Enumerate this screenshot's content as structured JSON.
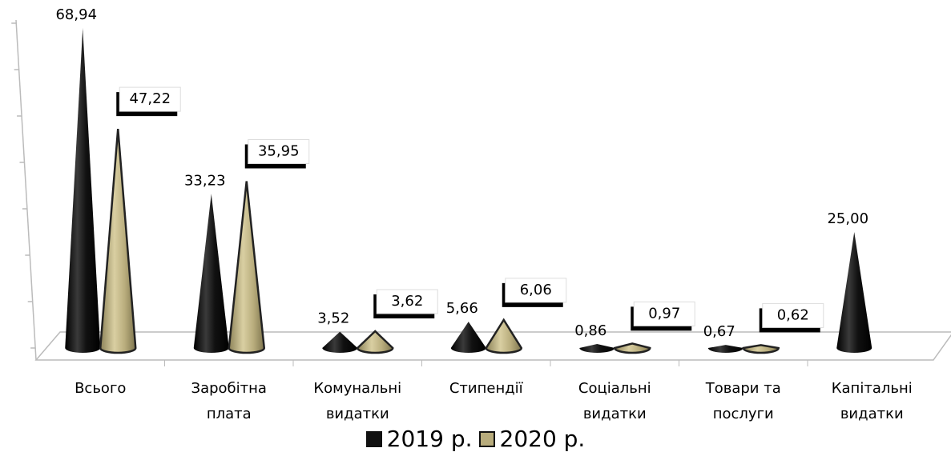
{
  "chart_data": {
    "type": "cone",
    "categories": [
      "Всього",
      "Заробітна плата",
      "Комунальні видатки",
      "Стипендії",
      "Соціальні видатки",
      "Товари та послуги",
      "Капітальні видатки"
    ],
    "series": [
      {
        "name": "2019 р.",
        "color": "#111111",
        "values": [
          68.94,
          33.23,
          3.52,
          5.66,
          0.86,
          0.67,
          25.0
        ],
        "value_labels": [
          "68,94",
          "33,23",
          "3,52",
          "5,66",
          "0,86",
          "0,67",
          "25,00"
        ]
      },
      {
        "name": "2020 р.",
        "color": "#b8ac7c",
        "values": [
          47.22,
          35.95,
          3.62,
          6.06,
          0.97,
          0.62,
          null
        ],
        "value_labels": [
          "47,22",
          "35,95",
          "3,62",
          "6,06",
          "0,97",
          "0,62",
          null
        ]
      }
    ],
    "ylim": [
      0,
      70
    ],
    "yticks": [
      0,
      10,
      20,
      30,
      40,
      50,
      60,
      70
    ]
  }
}
